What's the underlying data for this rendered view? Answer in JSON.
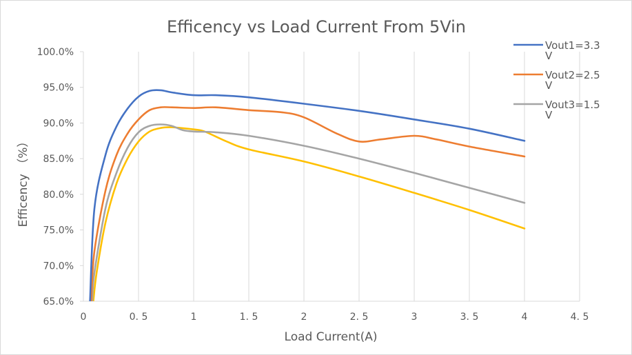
{
  "chart_data": {
    "type": "line",
    "title": "Efficency vs Load Current From 5Vin",
    "xlabel": "Load Current(A)",
    "ylabel": "Efficency （%）",
    "xlim": [
      0,
      4.5
    ],
    "ylim": [
      65,
      100
    ],
    "x_ticks": [
      "0",
      "0. 5",
      "1",
      "1. 5",
      "2",
      "2. 5",
      "3",
      "3. 5",
      "4",
      "4. 5"
    ],
    "y_ticks": [
      "65.0%",
      "70.0%",
      "75.0%",
      "80.0%",
      "85.0%",
      "90.0%",
      "95.0%",
      "100.0%"
    ],
    "grid": "vertical",
    "legend_position": "right",
    "series": [
      {
        "name": "Vout1=3.3V",
        "legend_lines": [
          "Vout1=3.3",
          "V"
        ],
        "color": "#4472C4",
        "points": [
          [
            0.06,
            65.0
          ],
          [
            0.1,
            78.0
          ],
          [
            0.2,
            85.5
          ],
          [
            0.3,
            89.5
          ],
          [
            0.4,
            92.0
          ],
          [
            0.5,
            93.7
          ],
          [
            0.6,
            94.5
          ],
          [
            0.7,
            94.6
          ],
          [
            0.8,
            94.3
          ],
          [
            1.0,
            93.9
          ],
          [
            1.2,
            93.9
          ],
          [
            1.5,
            93.6
          ],
          [
            2.0,
            92.7
          ],
          [
            2.5,
            91.7
          ],
          [
            3.0,
            90.5
          ],
          [
            3.5,
            89.2
          ],
          [
            4.0,
            87.5
          ]
        ]
      },
      {
        "name": "Vout2=2.5V",
        "legend_lines": [
          "Vout2=2.5",
          "V"
        ],
        "color": "#ED7D31",
        "points": [
          [
            0.07,
            65.0
          ],
          [
            0.1,
            72.0
          ],
          [
            0.2,
            80.5
          ],
          [
            0.3,
            85.5
          ],
          [
            0.4,
            88.5
          ],
          [
            0.5,
            90.5
          ],
          [
            0.6,
            91.8
          ],
          [
            0.7,
            92.2
          ],
          [
            0.8,
            92.2
          ],
          [
            1.0,
            92.1
          ],
          [
            1.2,
            92.2
          ],
          [
            1.5,
            91.8
          ],
          [
            1.8,
            91.5
          ],
          [
            2.0,
            90.8
          ],
          [
            2.3,
            88.5
          ],
          [
            2.5,
            87.4
          ],
          [
            2.7,
            87.7
          ],
          [
            3.0,
            88.2
          ],
          [
            3.2,
            87.7
          ],
          [
            3.5,
            86.7
          ],
          [
            4.0,
            85.3
          ]
        ]
      },
      {
        "name": "Vout3=1.5V",
        "legend_lines": [
          "Vout3=1.5",
          "V"
        ],
        "color": "#A5A5A5",
        "points": [
          [
            0.08,
            65.0
          ],
          [
            0.1,
            69.0
          ],
          [
            0.2,
            78.0
          ],
          [
            0.3,
            83.0
          ],
          [
            0.4,
            86.5
          ],
          [
            0.5,
            88.7
          ],
          [
            0.6,
            89.6
          ],
          [
            0.7,
            89.8
          ],
          [
            0.8,
            89.6
          ],
          [
            0.9,
            89.0
          ],
          [
            1.0,
            88.8
          ],
          [
            1.2,
            88.7
          ],
          [
            1.5,
            88.2
          ],
          [
            2.0,
            86.8
          ],
          [
            2.5,
            85.0
          ],
          [
            3.0,
            83.0
          ],
          [
            3.5,
            80.9
          ],
          [
            4.0,
            78.8
          ]
        ]
      },
      {
        "name": "",
        "legend_lines": [],
        "color": "#FFC000",
        "points": [
          [
            0.09,
            65.0
          ],
          [
            0.12,
            69.0
          ],
          [
            0.2,
            76.0
          ],
          [
            0.3,
            81.5
          ],
          [
            0.4,
            85.0
          ],
          [
            0.5,
            87.4
          ],
          [
            0.6,
            88.8
          ],
          [
            0.7,
            89.3
          ],
          [
            0.8,
            89.4
          ],
          [
            1.0,
            89.1
          ],
          [
            1.1,
            88.8
          ],
          [
            1.3,
            87.4
          ],
          [
            1.5,
            86.3
          ],
          [
            2.0,
            84.6
          ],
          [
            2.5,
            82.5
          ],
          [
            3.0,
            80.2
          ],
          [
            3.5,
            77.8
          ],
          [
            4.0,
            75.2
          ]
        ]
      }
    ]
  }
}
